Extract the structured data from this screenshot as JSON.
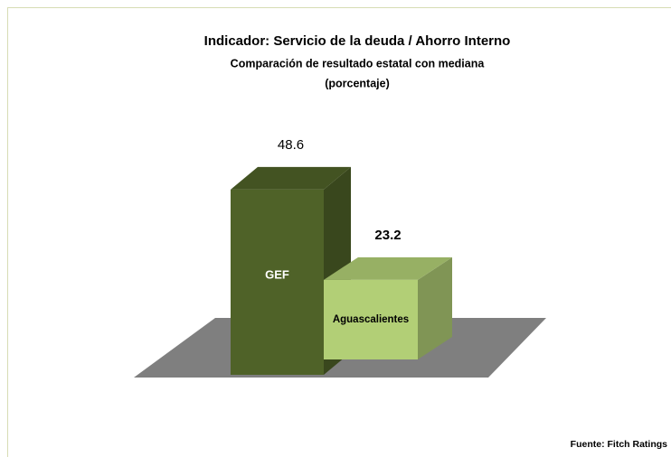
{
  "chart_data": {
    "type": "bar3d",
    "title": "Indicador: Servicio de la deuda / Ahorro Interno",
    "subtitle": [
      "Comparación de resultado estatal con mediana",
      "(porcentaje)"
    ],
    "categories": [
      "GEF",
      "Aguascalientes"
    ],
    "values": [
      48.6,
      23.2
    ],
    "colors": [
      "#4f6228",
      "#b2cf76"
    ],
    "source": "Fuente: Fitch Ratings"
  }
}
